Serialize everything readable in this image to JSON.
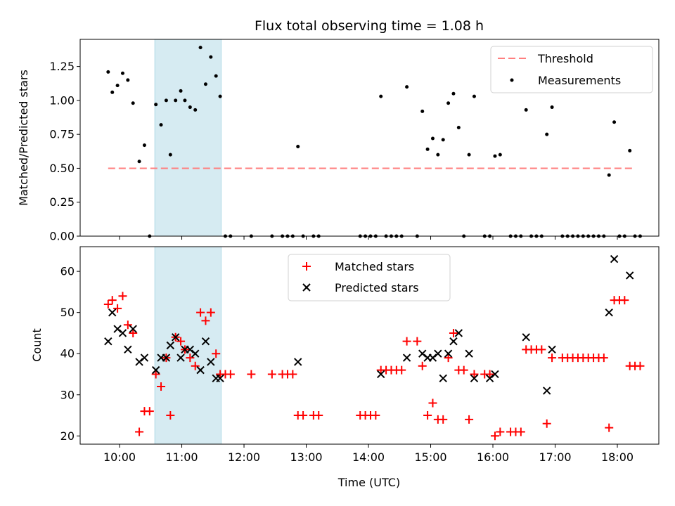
{
  "chart_data": [
    {
      "type": "scatter",
      "title": "Flux total observing time = 1.08 h",
      "xlabel": "",
      "ylabel": "Matched/Predicted stars",
      "ylim": [
        0,
        1.45
      ],
      "yticks": [
        "0.00",
        "0.25",
        "0.50",
        "0.75",
        "1.00",
        "1.25"
      ],
      "xlim": [
        "09:22",
        "18:40"
      ],
      "shaded_interval": [
        "10:34",
        "11:38"
      ],
      "grid": false,
      "legend_position": "top-right",
      "legend": [
        "Threshold",
        "Measurements"
      ],
      "threshold": {
        "name": "Threshold",
        "value": 0.5,
        "x": [
          "09:49",
          "18:15"
        ],
        "color": "#ff7f7f"
      },
      "series": [
        {
          "name": "Measurements",
          "color": "#000000",
          "points": [
            [
              "09:49",
              1.21
            ],
            [
              "09:53",
              1.06
            ],
            [
              "09:58",
              1.11
            ],
            [
              "10:03",
              1.2
            ],
            [
              "10:08",
              1.15
            ],
            [
              "10:13",
              0.98
            ],
            [
              "10:19",
              0.55
            ],
            [
              "10:24",
              0.67
            ],
            [
              "10:29",
              0.0
            ],
            [
              "10:35",
              0.97
            ],
            [
              "10:40",
              0.82
            ],
            [
              "10:45",
              1.0
            ],
            [
              "10:49",
              0.6
            ],
            [
              "10:54",
              1.0
            ],
            [
              "10:59",
              1.07
            ],
            [
              "11:03",
              1.0
            ],
            [
              "11:08",
              0.95
            ],
            [
              "11:13",
              0.93
            ],
            [
              "11:18",
              1.39
            ],
            [
              "11:23",
              1.12
            ],
            [
              "11:28",
              1.32
            ],
            [
              "11:33",
              1.18
            ],
            [
              "11:37",
              1.03
            ],
            [
              "11:42",
              0.0
            ],
            [
              "11:47",
              0.0
            ],
            [
              "12:07",
              0.0
            ],
            [
              "12:27",
              0.0
            ],
            [
              "12:37",
              0.0
            ],
            [
              "12:42",
              0.0
            ],
            [
              "12:47",
              0.0
            ],
            [
              "12:52",
              0.66
            ],
            [
              "12:57",
              0.0
            ],
            [
              "13:07",
              0.0
            ],
            [
              "13:12",
              0.0
            ],
            [
              "13:52",
              0.0
            ],
            [
              "13:57",
              0.0
            ],
            [
              "14:02",
              0.0
            ],
            [
              "14:07",
              0.0
            ],
            [
              "14:12",
              1.03
            ],
            [
              "14:17",
              0.0
            ],
            [
              "14:22",
              0.0
            ],
            [
              "14:27",
              0.0
            ],
            [
              "14:32",
              0.0
            ],
            [
              "14:37",
              1.1
            ],
            [
              "14:47",
              0.0
            ],
            [
              "14:52",
              0.92
            ],
            [
              "14:57",
              0.64
            ],
            [
              "15:02",
              0.72
            ],
            [
              "15:07",
              0.6
            ],
            [
              "15:12",
              0.71
            ],
            [
              "15:17",
              0.98
            ],
            [
              "15:22",
              1.05
            ],
            [
              "15:27",
              0.8
            ],
            [
              "15:32",
              0.0
            ],
            [
              "15:37",
              0.6
            ],
            [
              "15:42",
              1.03
            ],
            [
              "15:52",
              0.0
            ],
            [
              "15:57",
              0.0
            ],
            [
              "16:02",
              0.59
            ],
            [
              "16:07",
              0.6
            ],
            [
              "16:17",
              0.0
            ],
            [
              "16:22",
              0.0
            ],
            [
              "16:27",
              0.0
            ],
            [
              "16:32",
              0.93
            ],
            [
              "16:37",
              0.0
            ],
            [
              "16:42",
              0.0
            ],
            [
              "16:47",
              0.0
            ],
            [
              "16:52",
              0.75
            ],
            [
              "16:57",
              0.95
            ],
            [
              "17:07",
              0.0
            ],
            [
              "17:12",
              0.0
            ],
            [
              "17:17",
              0.0
            ],
            [
              "17:22",
              0.0
            ],
            [
              "17:27",
              0.0
            ],
            [
              "17:32",
              0.0
            ],
            [
              "17:37",
              0.0
            ],
            [
              "17:42",
              0.0
            ],
            [
              "17:47",
              0.0
            ],
            [
              "17:52",
              0.45
            ],
            [
              "17:57",
              0.84
            ],
            [
              "18:02",
              0.0
            ],
            [
              "18:07",
              0.0
            ],
            [
              "18:12",
              0.63
            ],
            [
              "18:17",
              0.0
            ],
            [
              "18:22",
              0.0
            ]
          ]
        }
      ]
    },
    {
      "type": "scatter",
      "title": "",
      "xlabel": "Time (UTC)",
      "ylabel": "Count",
      "ylim": [
        18,
        66
      ],
      "yticks": [
        "20",
        "30",
        "40",
        "50",
        "60"
      ],
      "xlim": [
        "09:22",
        "18:40"
      ],
      "xticks": [
        "10:00",
        "11:00",
        "12:00",
        "13:00",
        "14:00",
        "15:00",
        "16:00",
        "17:00",
        "18:00"
      ],
      "shaded_interval": [
        "10:34",
        "11:38"
      ],
      "grid": false,
      "legend_position": "top-center",
      "legend": [
        "Matched stars",
        "Predicted stars"
      ],
      "series": [
        {
          "name": "Matched stars",
          "color": "#ff0000",
          "marker": "plus",
          "points": [
            [
              "09:49",
              52
            ],
            [
              "09:53",
              53
            ],
            [
              "09:58",
              51
            ],
            [
              "10:03",
              54
            ],
            [
              "10:08",
              47
            ],
            [
              "10:13",
              45
            ],
            [
              "10:19",
              21
            ],
            [
              "10:24",
              26
            ],
            [
              "10:29",
              26
            ],
            [
              "10:35",
              35
            ],
            [
              "10:40",
              32
            ],
            [
              "10:45",
              39
            ],
            [
              "10:49",
              25
            ],
            [
              "10:54",
              44
            ],
            [
              "10:59",
              43
            ],
            [
              "11:03",
              41
            ],
            [
              "11:08",
              39
            ],
            [
              "11:13",
              37
            ],
            [
              "11:18",
              50
            ],
            [
              "11:23",
              48
            ],
            [
              "11:28",
              50
            ],
            [
              "11:33",
              40
            ],
            [
              "11:37",
              35
            ],
            [
              "11:42",
              35
            ],
            [
              "11:47",
              35
            ],
            [
              "12:07",
              35
            ],
            [
              "12:27",
              35
            ],
            [
              "12:37",
              35
            ],
            [
              "12:42",
              35
            ],
            [
              "12:47",
              35
            ],
            [
              "12:52",
              25
            ],
            [
              "12:57",
              25
            ],
            [
              "13:07",
              25
            ],
            [
              "13:12",
              25
            ],
            [
              "13:52",
              25
            ],
            [
              "13:57",
              25
            ],
            [
              "14:02",
              25
            ],
            [
              "14:07",
              25
            ],
            [
              "14:12",
              36
            ],
            [
              "14:17",
              36
            ],
            [
              "14:22",
              36
            ],
            [
              "14:27",
              36
            ],
            [
              "14:32",
              36
            ],
            [
              "14:37",
              43
            ],
            [
              "14:47",
              43
            ],
            [
              "14:52",
              37
            ],
            [
              "14:57",
              25
            ],
            [
              "15:02",
              28
            ],
            [
              "15:07",
              24
            ],
            [
              "15:12",
              24
            ],
            [
              "15:17",
              39
            ],
            [
              "15:22",
              45
            ],
            [
              "15:27",
              36
            ],
            [
              "15:32",
              36
            ],
            [
              "15:37",
              24
            ],
            [
              "15:42",
              35
            ],
            [
              "15:52",
              35
            ],
            [
              "15:57",
              35
            ],
            [
              "16:02",
              20
            ],
            [
              "16:07",
              21
            ],
            [
              "16:17",
              21
            ],
            [
              "16:22",
              21
            ],
            [
              "16:27",
              21
            ],
            [
              "16:32",
              41
            ],
            [
              "16:37",
              41
            ],
            [
              "16:42",
              41
            ],
            [
              "16:47",
              41
            ],
            [
              "16:52",
              23
            ],
            [
              "16:57",
              39
            ],
            [
              "17:07",
              39
            ],
            [
              "17:12",
              39
            ],
            [
              "17:17",
              39
            ],
            [
              "17:22",
              39
            ],
            [
              "17:27",
              39
            ],
            [
              "17:32",
              39
            ],
            [
              "17:37",
              39
            ],
            [
              "17:42",
              39
            ],
            [
              "17:47",
              39
            ],
            [
              "17:52",
              22
            ],
            [
              "17:57",
              53
            ],
            [
              "18:02",
              53
            ],
            [
              "18:07",
              53
            ],
            [
              "18:12",
              37
            ],
            [
              "18:17",
              37
            ],
            [
              "18:22",
              37
            ]
          ]
        },
        {
          "name": "Predicted stars",
          "color": "#000000",
          "marker": "x",
          "points": [
            [
              "09:49",
              43
            ],
            [
              "09:53",
              50
            ],
            [
              "09:58",
              46
            ],
            [
              "10:03",
              45
            ],
            [
              "10:08",
              41
            ],
            [
              "10:13",
              46
            ],
            [
              "10:19",
              38
            ],
            [
              "10:24",
              39
            ],
            [
              "10:35",
              36
            ],
            [
              "10:40",
              39
            ],
            [
              "10:45",
              39
            ],
            [
              "10:49",
              42
            ],
            [
              "10:54",
              44
            ],
            [
              "10:59",
              39
            ],
            [
              "11:03",
              41
            ],
            [
              "11:08",
              41
            ],
            [
              "11:13",
              40
            ],
            [
              "11:18",
              36
            ],
            [
              "11:23",
              43
            ],
            [
              "11:28",
              38
            ],
            [
              "11:33",
              34
            ],
            [
              "11:37",
              34
            ],
            [
              "12:52",
              38
            ],
            [
              "14:12",
              35
            ],
            [
              "14:37",
              39
            ],
            [
              "14:52",
              40
            ],
            [
              "14:57",
              39
            ],
            [
              "15:02",
              39
            ],
            [
              "15:07",
              40
            ],
            [
              "15:12",
              34
            ],
            [
              "15:17",
              40
            ],
            [
              "15:22",
              43
            ],
            [
              "15:27",
              45
            ],
            [
              "15:37",
              40
            ],
            [
              "15:42",
              34
            ],
            [
              "15:57",
              34
            ],
            [
              "16:02",
              35
            ],
            [
              "16:32",
              44
            ],
            [
              "16:52",
              31
            ],
            [
              "16:57",
              41
            ],
            [
              "17:52",
              50
            ],
            [
              "17:57",
              63
            ],
            [
              "18:12",
              59
            ]
          ]
        }
      ]
    }
  ]
}
